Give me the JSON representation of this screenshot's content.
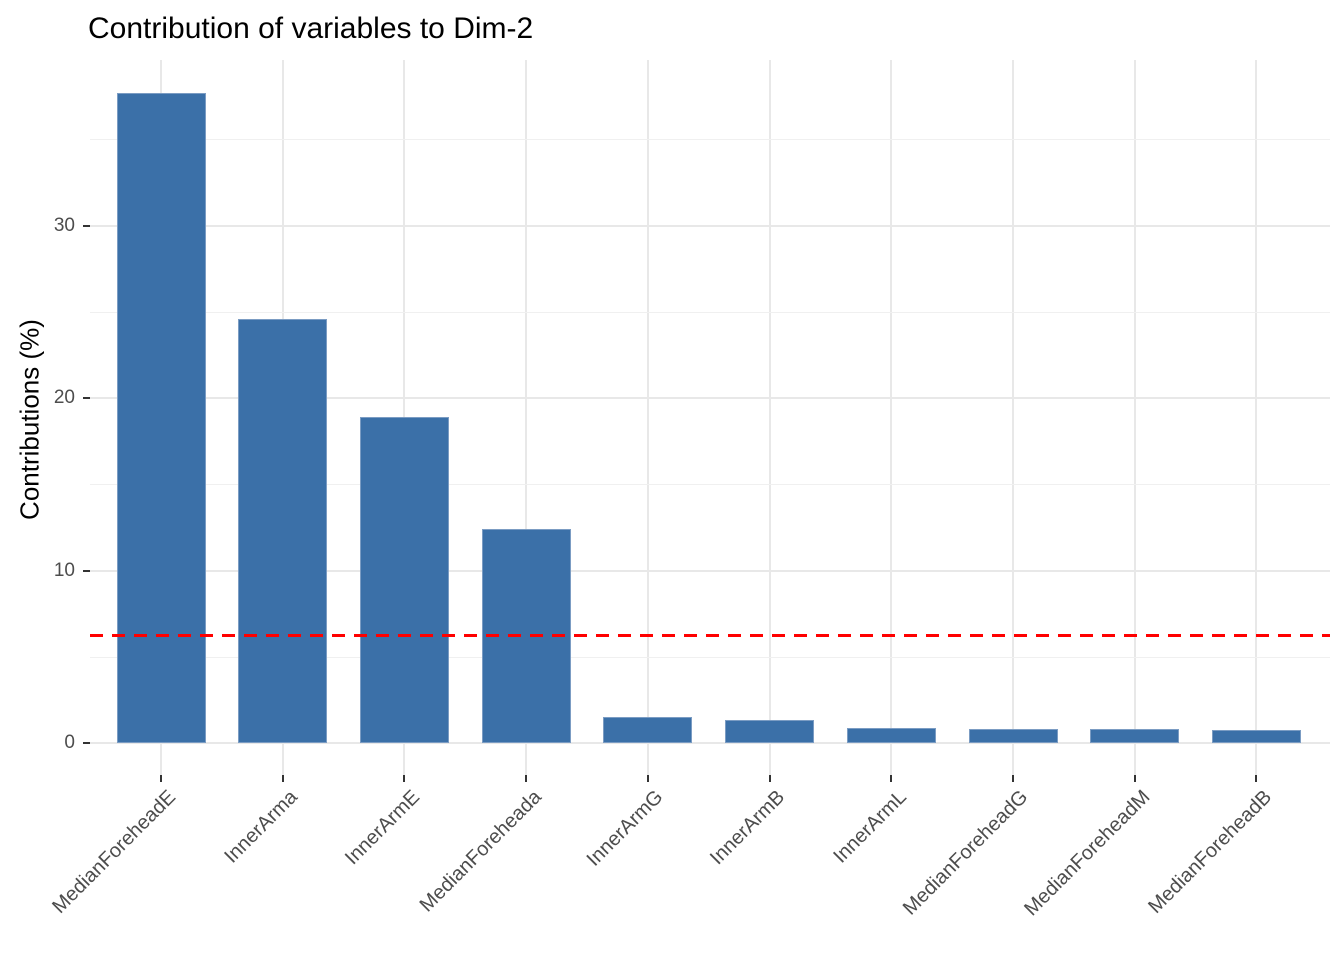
{
  "title": "Contribution of variables to Dim-2",
  "y_axis": {
    "label": "Contributions (%)",
    "tick_labels": [
      "0",
      "10",
      "20",
      "30"
    ]
  },
  "chart_data": {
    "type": "bar",
    "title": "Contribution of variables to Dim-2",
    "xlabel": "",
    "ylabel": "Contributions (%)",
    "categories": [
      "MedianForeheadE",
      "InnerArma",
      "InnerArmE",
      "MedianForeheada",
      "InnerArmG",
      "InnerArmB",
      "InnerArmL",
      "MedianForeheadG",
      "MedianForeheadM",
      "MedianForeheadB"
    ],
    "values": [
      37.7,
      24.6,
      18.9,
      12.4,
      1.5,
      1.35,
      0.88,
      0.82,
      0.8,
      0.76
    ],
    "yticks": [
      0,
      10,
      20,
      30
    ],
    "yticks_minor": [
      5,
      15,
      25,
      35
    ],
    "ylim": [
      -1.9,
      39.6
    ],
    "grid": true,
    "legend": "none",
    "bar_color": "#3b70a8",
    "reference_line": {
      "value": 6.25,
      "color": "#ff0000",
      "style": "dashed"
    }
  }
}
